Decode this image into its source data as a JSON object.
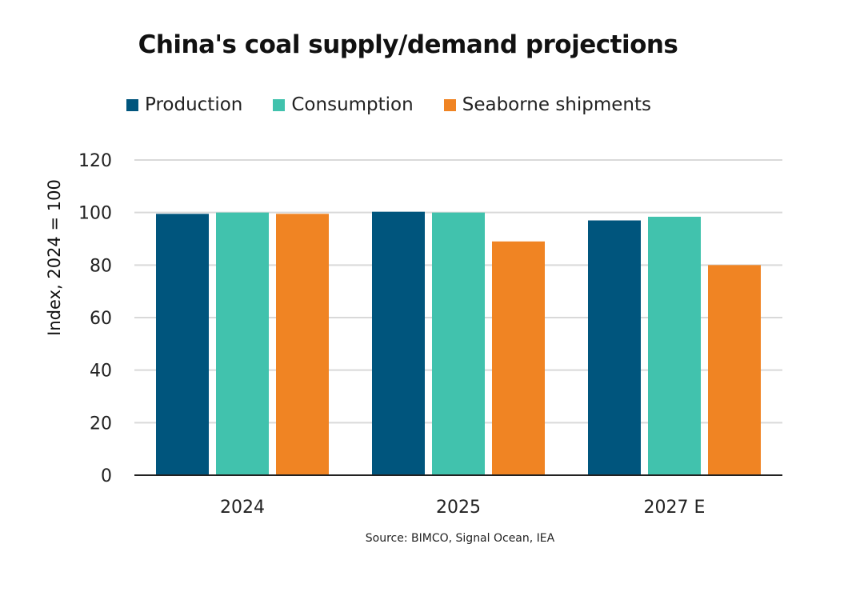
{
  "chart_data": {
    "type": "bar",
    "title": "China's coal supply/demand projections",
    "ylabel": "Index, 2024 = 100",
    "xlabel": "",
    "source": "Source: BIMCO, Signal Ocean, IEA",
    "categories": [
      "2024",
      "2025",
      "2027 E"
    ],
    "series": [
      {
        "name": "Production",
        "color": "#00557D",
        "values": [
          99.5,
          100.3,
          97.0
        ]
      },
      {
        "name": "Consumption",
        "color": "#41C2AD",
        "values": [
          100.0,
          100.0,
          98.4
        ]
      },
      {
        "name": "Seaborne shipments",
        "color": "#F08423",
        "values": [
          99.5,
          89.0,
          80.0
        ]
      }
    ],
    "ylim": [
      0,
      120
    ],
    "yticks": [
      0,
      20,
      40,
      60,
      80,
      100,
      120
    ],
    "grid": true,
    "legend": "top"
  }
}
